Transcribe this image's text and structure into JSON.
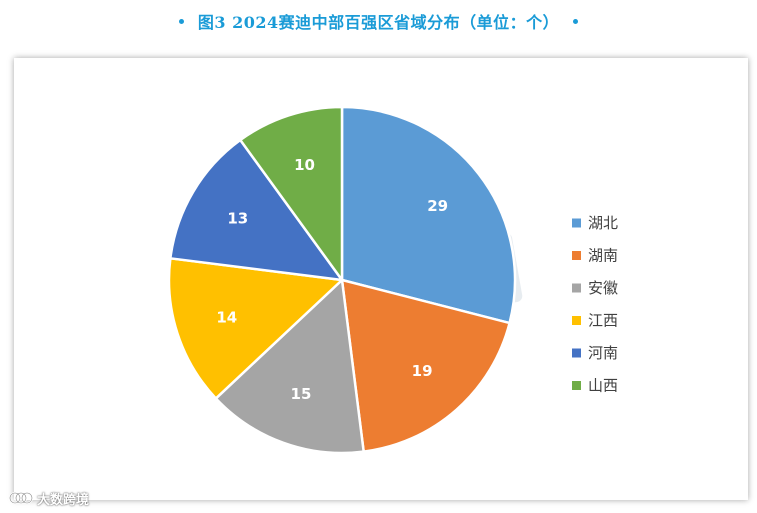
{
  "header": {
    "title": "图3  2024赛迪中部百强区省域分布（单位：个）"
  },
  "footer": {
    "brand": "大数跨境"
  },
  "colors": {
    "title": "#1a9bd7",
    "series": [
      "#5b9bd5",
      "#ed7d31",
      "#a5a5a5",
      "#ffc000",
      "#4472c4",
      "#70ad47"
    ]
  },
  "chart_data": {
    "type": "pie",
    "title": "图3  2024赛迪中部百强区省域分布（单位：个）",
    "categories": [
      "湖北",
      "湖南",
      "安徽",
      "江西",
      "河南",
      "山西"
    ],
    "values": [
      29,
      19,
      15,
      14,
      13,
      10
    ],
    "data_labels": [
      "29",
      "19",
      "15",
      "14",
      "13",
      "10"
    ],
    "legend_position": "right",
    "start": "12 o'clock",
    "direction": "clockwise"
  }
}
